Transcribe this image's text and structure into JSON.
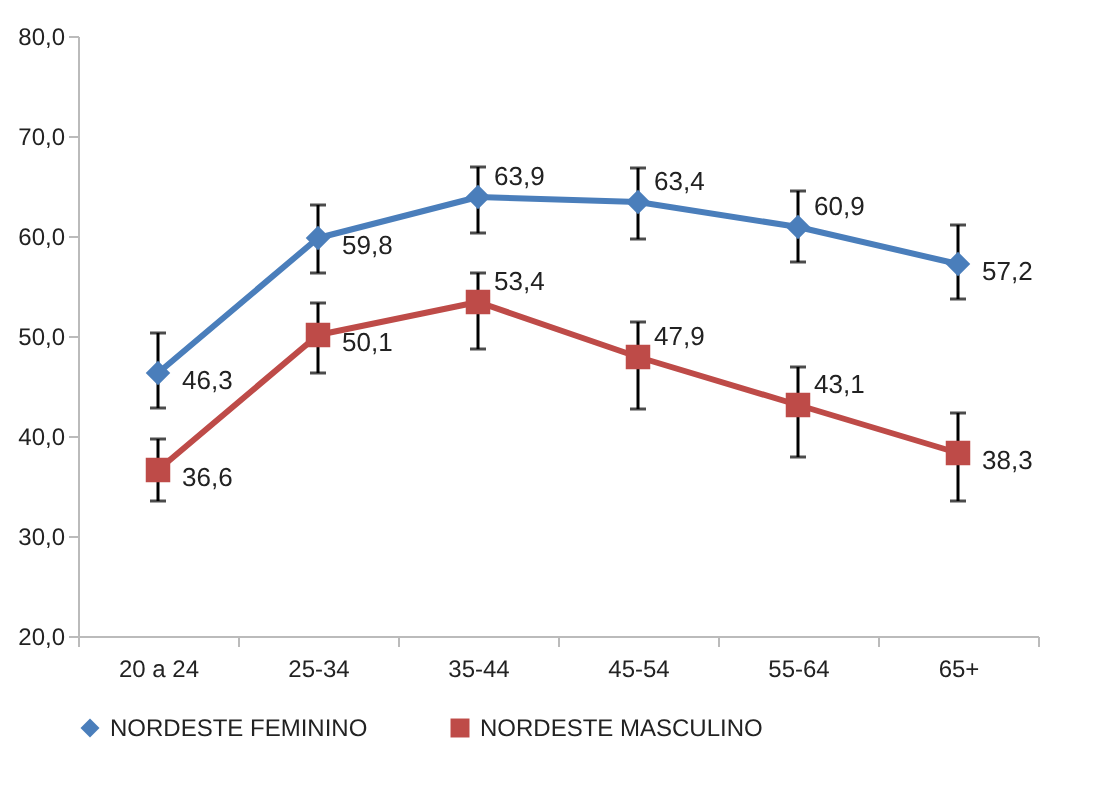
{
  "chart_data": {
    "type": "line",
    "categories": [
      "20 a 24",
      "25-34",
      "35-44",
      "45-54",
      "55-64",
      "65+"
    ],
    "series": [
      {
        "name": "NORDESTE FEMININO",
        "color": "#4a7ebb",
        "marker": "diamond",
        "values": [
          46.3,
          59.8,
          63.9,
          63.4,
          60.9,
          57.2
        ],
        "errors": [
          [
            42.8,
            50.3
          ],
          [
            56.3,
            63.1
          ],
          [
            60.3,
            66.9
          ],
          [
            59.7,
            66.8
          ],
          [
            57.4,
            64.5
          ],
          [
            53.7,
            61.1
          ]
        ],
        "value_labels": [
          "46,3",
          "59,8",
          "63,9",
          "63,4",
          "60,9",
          "57,2"
        ]
      },
      {
        "name": "NORDESTE MASCULINO",
        "color": "#be4b48",
        "marker": "square",
        "values": [
          36.6,
          50.1,
          53.4,
          47.9,
          43.1,
          38.3
        ],
        "errors": [
          [
            33.5,
            39.7
          ],
          [
            46.3,
            53.3
          ],
          [
            48.7,
            56.3
          ],
          [
            42.7,
            51.4
          ],
          [
            37.9,
            46.9
          ],
          [
            33.5,
            42.3
          ]
        ],
        "value_labels": [
          "36,6",
          "50,1",
          "53,4",
          "47,9",
          "43,1",
          "38,3"
        ]
      }
    ],
    "ylim": [
      20,
      80
    ],
    "yticks": [
      {
        "value": 20,
        "label": "20,0"
      },
      {
        "value": 30,
        "label": "30,0"
      },
      {
        "value": 40,
        "label": "40,0"
      },
      {
        "value": 50,
        "label": "50,0"
      },
      {
        "value": 60,
        "label": "60,0"
      },
      {
        "value": 70,
        "label": "70,0"
      },
      {
        "value": 80,
        "label": "80,0"
      }
    ],
    "legend": "bottom"
  }
}
